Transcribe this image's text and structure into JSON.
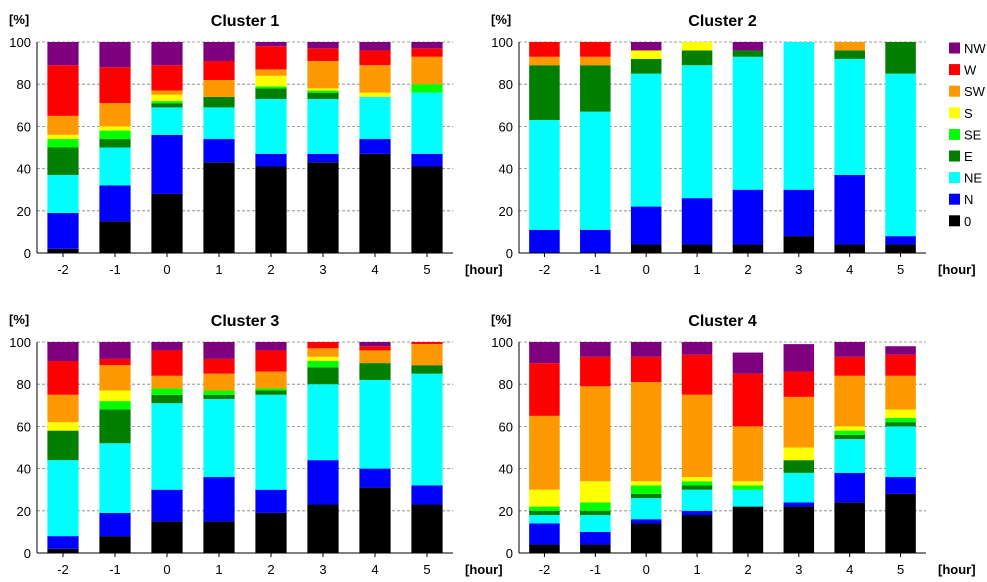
{
  "chart_data": [
    {
      "type": "bar",
      "stacked": true,
      "title": "Cluster 1",
      "ylabel": "[%]",
      "xlabel": "[hour]",
      "ylim": [
        0,
        100
      ],
      "yticks": [
        "0",
        "20",
        "40",
        "60",
        "80",
        "100"
      ],
      "categories": [
        "-2",
        "-1",
        "0",
        "1",
        "2",
        "3",
        "4",
        "5"
      ],
      "grid": "horizontal dashed",
      "series": [
        {
          "name": "0",
          "values": [
            2,
            15,
            28,
            43,
            41,
            43,
            47,
            41
          ]
        },
        {
          "name": "N",
          "values": [
            17,
            17,
            28,
            11,
            6,
            4,
            7,
            6
          ]
        },
        {
          "name": "NE",
          "values": [
            18,
            18,
            13,
            15,
            26,
            26,
            20,
            29
          ]
        },
        {
          "name": "E",
          "values": [
            13,
            4,
            2,
            5,
            5,
            3,
            0,
            0
          ]
        },
        {
          "name": "SE",
          "values": [
            4,
            4,
            1,
            0,
            1,
            1,
            0,
            4
          ]
        },
        {
          "name": "S",
          "values": [
            2,
            2,
            3,
            0,
            5,
            1,
            2,
            0
          ]
        },
        {
          "name": "SW",
          "values": [
            9,
            11,
            2,
            8,
            3,
            13,
            13,
            13
          ]
        },
        {
          "name": "W",
          "values": [
            24,
            17,
            12,
            9,
            11,
            6,
            7,
            4
          ]
        },
        {
          "name": "NW",
          "values": [
            11,
            12,
            11,
            9,
            2,
            3,
            4,
            3
          ]
        }
      ]
    },
    {
      "type": "bar",
      "stacked": true,
      "title": "Cluster 2",
      "ylabel": "[%]",
      "xlabel": "[hour]",
      "ylim": [
        0,
        100
      ],
      "yticks": [
        "0",
        "20",
        "40",
        "60",
        "80",
        "100"
      ],
      "categories": [
        "-2",
        "-1",
        "0",
        "1",
        "2",
        "3",
        "4",
        "5"
      ],
      "grid": "horizontal dashed",
      "series": [
        {
          "name": "0",
          "values": [
            0,
            0,
            4,
            4,
            4,
            8,
            4,
            4
          ]
        },
        {
          "name": "N",
          "values": [
            11,
            11,
            18,
            22,
            26,
            22,
            33,
            4
          ]
        },
        {
          "name": "NE",
          "values": [
            52,
            56,
            63,
            63,
            63,
            70,
            55,
            77
          ]
        },
        {
          "name": "E",
          "values": [
            26,
            22,
            7,
            7,
            3,
            0,
            4,
            15
          ]
        },
        {
          "name": "SE",
          "values": [
            0,
            0,
            0,
            0,
            0,
            0,
            0,
            0
          ]
        },
        {
          "name": "S",
          "values": [
            0,
            0,
            4,
            4,
            0,
            0,
            0,
            0
          ]
        },
        {
          "name": "SW",
          "values": [
            4,
            4,
            0,
            0,
            0,
            0,
            4,
            0
          ]
        },
        {
          "name": "W",
          "values": [
            7,
            7,
            0,
            0,
            0,
            0,
            0,
            0
          ]
        },
        {
          "name": "NW",
          "values": [
            0,
            0,
            4,
            0,
            4,
            0,
            0,
            0
          ]
        }
      ]
    },
    {
      "type": "bar",
      "stacked": true,
      "title": "Cluster 3",
      "ylabel": "[%]",
      "xlabel": "[hour]",
      "ylim": [
        0,
        100
      ],
      "yticks": [
        "0",
        "20",
        "40",
        "60",
        "80",
        "100"
      ],
      "categories": [
        "-2",
        "-1",
        "0",
        "1",
        "2",
        "3",
        "4",
        "5"
      ],
      "grid": "horizontal dashed",
      "series": [
        {
          "name": "0",
          "values": [
            2,
            8,
            15,
            15,
            19,
            23,
            31,
            23
          ]
        },
        {
          "name": "N",
          "values": [
            6,
            11,
            15,
            21,
            11,
            21,
            9,
            9
          ]
        },
        {
          "name": "NE",
          "values": [
            36,
            33,
            41,
            37,
            45,
            36,
            42,
            53
          ]
        },
        {
          "name": "E",
          "values": [
            14,
            16,
            4,
            2,
            2,
            8,
            8,
            4
          ]
        },
        {
          "name": "SE",
          "values": [
            0,
            4,
            3,
            2,
            1,
            3,
            0,
            0
          ]
        },
        {
          "name": "S",
          "values": [
            4,
            5,
            0,
            0,
            0,
            2,
            0,
            0
          ]
        },
        {
          "name": "SW",
          "values": [
            13,
            12,
            6,
            8,
            8,
            4,
            6,
            10
          ]
        },
        {
          "name": "W",
          "values": [
            16,
            3,
            12,
            7,
            10,
            3,
            2,
            1
          ]
        },
        {
          "name": "NW",
          "values": [
            9,
            8,
            4,
            8,
            4,
            0,
            2,
            0
          ]
        }
      ]
    },
    {
      "type": "bar",
      "stacked": true,
      "title": "Cluster 4",
      "ylabel": "[%]",
      "xlabel": "[hour]",
      "ylim": [
        0,
        100
      ],
      "yticks": [
        "0",
        "20",
        "40",
        "60",
        "80",
        "100"
      ],
      "categories": [
        "-2",
        "-1",
        "0",
        "1",
        "2",
        "3",
        "4",
        "5"
      ],
      "grid": "horizontal dashed",
      "series": [
        {
          "name": "0",
          "values": [
            4,
            4,
            14,
            18,
            22,
            22,
            24,
            28
          ]
        },
        {
          "name": "N",
          "values": [
            10,
            6,
            2,
            2,
            0,
            2,
            14,
            8
          ]
        },
        {
          "name": "NE",
          "values": [
            4,
            8,
            10,
            10,
            8,
            14,
            16,
            24
          ]
        },
        {
          "name": "E",
          "values": [
            2,
            2,
            2,
            2,
            0,
            6,
            2,
            2
          ]
        },
        {
          "name": "SE",
          "values": [
            2,
            4,
            4,
            2,
            2,
            0,
            2,
            2
          ]
        },
        {
          "name": "S",
          "values": [
            8,
            10,
            2,
            2,
            2,
            6,
            2,
            4
          ]
        },
        {
          "name": "SW",
          "values": [
            35,
            45,
            47,
            39,
            26,
            24,
            24,
            16
          ]
        },
        {
          "name": "W",
          "values": [
            25,
            14,
            12,
            19,
            25,
            12,
            9,
            10
          ]
        },
        {
          "name": "NW",
          "values": [
            10,
            7,
            7,
            6,
            10,
            13,
            7,
            4
          ]
        }
      ]
    }
  ],
  "legend": {
    "placement": "right",
    "order": [
      "NW",
      "W",
      "SW",
      "S",
      "SE",
      "E",
      "NE",
      "N",
      "0"
    ],
    "colors": {
      "NW": "#7F007F",
      "W": "#FF0000",
      "SW": "#FF9900",
      "S": "#FFFF00",
      "SE": "#00FF00",
      "E": "#007F00",
      "NE": "#00FFFF",
      "N": "#0000FF",
      "0": "#000000"
    }
  }
}
